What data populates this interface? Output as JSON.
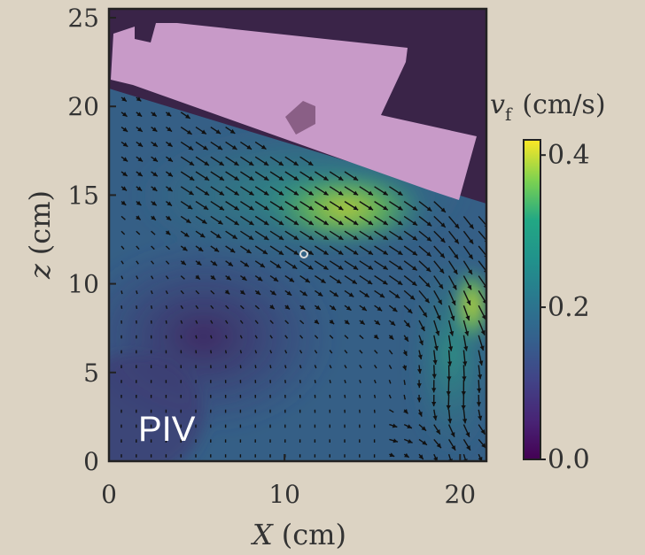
{
  "chart_data": {
    "type": "heatmap",
    "title": "",
    "xlabel": "X (cm)",
    "xlabel_var": "X",
    "xlabel_unit": "(cm)",
    "ylabel": "z (cm)",
    "ylabel_var": "z",
    "ylabel_unit": "(cm)",
    "xlim": [
      0,
      21.5
    ],
    "ylim": [
      0,
      25.5
    ],
    "xticks": [
      0,
      10,
      20
    ],
    "yticks": [
      0,
      5,
      10,
      15,
      20,
      25
    ],
    "annotation": "PIV",
    "colorbar": {
      "label": "v_f (cm/s)",
      "label_var": "v",
      "label_sub": "f",
      "label_unit": "(cm/s)",
      "range": [
        0.0,
        0.42
      ],
      "ticks": [
        {
          "value": 0.0,
          "label": "0.0"
        },
        {
          "value": 0.2,
          "label": "0.2"
        },
        {
          "value": 0.4,
          "label": "0.4"
        }
      ],
      "colormap": "viridis"
    },
    "grid": false,
    "body_color": "#c89ac8",
    "background_color": "#3a2448"
  }
}
